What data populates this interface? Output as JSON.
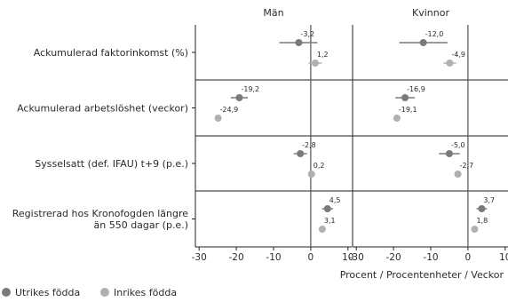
{
  "chart_data": {
    "type": "scatter",
    "panels": [
      "Män",
      "Kvinnor"
    ],
    "xlabel": "Procent / Procentenheter / Veckor",
    "xlim": [
      -31,
      11
    ],
    "xticks": [
      "-30",
      "-20",
      "-10",
      "0",
      "10"
    ],
    "rows": [
      {
        "label_lines": [
          "Ackumulerad faktorinkomst (%)"
        ],
        "values": {
          "Utrikes födda": {
            "Män": -3.2,
            "Kvinnor": -12.0
          },
          "Inrikes födda": {
            "Män": 1.2,
            "Kvinnor": -4.9
          }
        },
        "labels": {
          "Utrikes födda": {
            "Män": "-3,2",
            "Kvinnor": "-12,0"
          },
          "Inrikes födda": {
            "Män": "1,2",
            "Kvinnor": "-4,9"
          }
        },
        "ci": {
          "Utrikes födda": {
            "Män": [
              -8.5,
              1.8
            ],
            "Kvinnor": [
              -18.5,
              -5.5
            ]
          },
          "Inrikes födda": {
            "Män": [
              -0.6,
              3.0
            ],
            "Kvinnor": [
              -6.6,
              -3.2
            ]
          }
        }
      },
      {
        "label_lines": [
          "Ackumulerad arbetslöshet (veckor)"
        ],
        "values": {
          "Utrikes födda": {
            "Män": -19.2,
            "Kvinnor": -16.9
          },
          "Inrikes födda": {
            "Män": -24.9,
            "Kvinnor": -19.1
          }
        },
        "labels": {
          "Utrikes födda": {
            "Män": "-19,2",
            "Kvinnor": "-16,9"
          },
          "Inrikes födda": {
            "Män": "-24,9",
            "Kvinnor": "-19,1"
          }
        },
        "ci": {
          "Utrikes födda": {
            "Män": [
              -21.5,
              -16.9
            ],
            "Kvinnor": [
              -19.5,
              -14.3
            ]
          },
          "Inrikes födda": {
            "Män": [
              -25.8,
              -24.0
            ],
            "Kvinnor": [
              -20.0,
              -18.2
            ]
          }
        }
      },
      {
        "label_lines": [
          "Sysselsatt (def. IFAU) t+9 (p.e.)"
        ],
        "values": {
          "Utrikes födda": {
            "Män": -2.8,
            "Kvinnor": -5.0
          },
          "Inrikes födda": {
            "Män": 0.2,
            "Kvinnor": -2.7
          }
        },
        "labels": {
          "Utrikes födda": {
            "Män": "-2,8",
            "Kvinnor": "-5,0"
          },
          "Inrikes födda": {
            "Män": "0,2",
            "Kvinnor": "-2,7"
          }
        },
        "ci": {
          "Utrikes födda": {
            "Män": [
              -4.6,
              -1.0
            ],
            "Kvinnor": [
              -7.8,
              -2.2
            ]
          },
          "Inrikes födda": {
            "Män": [
              -0.5,
              0.9
            ],
            "Kvinnor": [
              -3.5,
              -1.9
            ]
          }
        }
      },
      {
        "label_lines": [
          "Registrerad hos Kronofogden längre",
          "än 550 dagar (p.e.)"
        ],
        "values": {
          "Utrikes födda": {
            "Män": 4.5,
            "Kvinnor": 3.7
          },
          "Inrikes födda": {
            "Män": 3.1,
            "Kvinnor": 1.8
          }
        },
        "labels": {
          "Utrikes födda": {
            "Män": "4,5",
            "Kvinnor": "3,7"
          },
          "Inrikes födda": {
            "Män": "3,1",
            "Kvinnor": "1,8"
          }
        },
        "ci": {
          "Utrikes födda": {
            "Män": [
              3.0,
              6.0
            ],
            "Kvinnor": [
              2.3,
              5.1
            ]
          },
          "Inrikes födda": {
            "Män": [
              2.5,
              3.7
            ],
            "Kvinnor": [
              1.2,
              2.4
            ]
          }
        }
      }
    ],
    "series": [
      {
        "name": "Utrikes födda",
        "color": "#7a7a7a"
      },
      {
        "name": "Inrikes födda",
        "color": "#b0b0b0"
      }
    ],
    "legend_position": "bottom-left",
    "grid": false
  }
}
